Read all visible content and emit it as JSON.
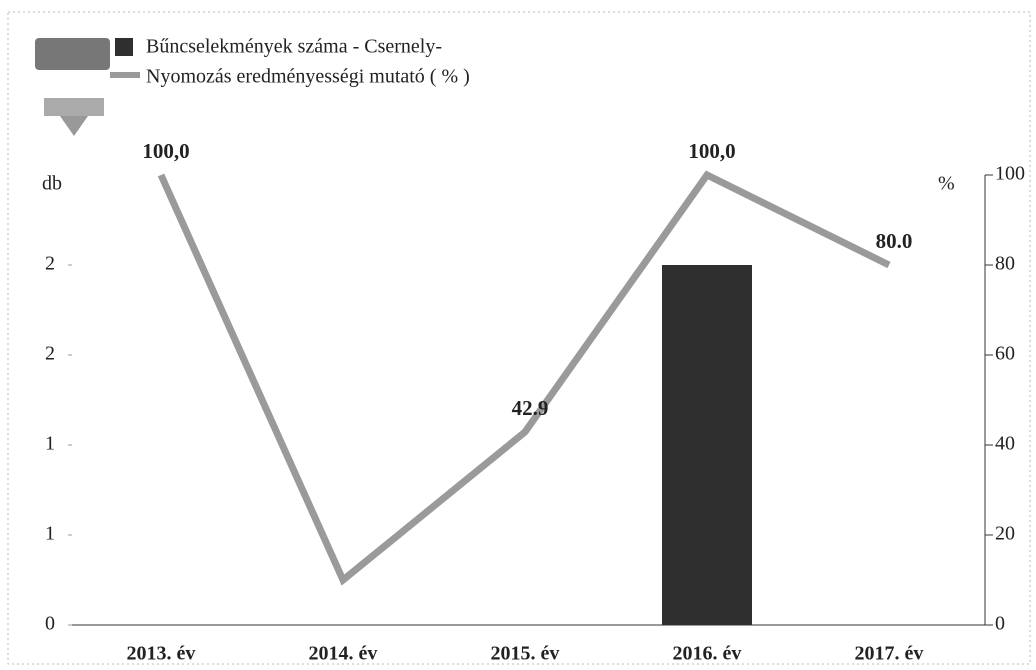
{
  "chart_data": {
    "type": "bar-line",
    "categories": [
      "2013. év",
      "2014. év",
      "2015. év",
      "2016. év",
      "2017. év"
    ],
    "series": [
      {
        "name": "Bűncselekmények száma - Csernely-",
        "type": "bar",
        "color": "#2f2f2f",
        "values": [
          0,
          0,
          0,
          2,
          0
        ]
      },
      {
        "name": "Nyomozás eredményességi mutató ( % )",
        "type": "line",
        "axis": "y2",
        "color": "#9a9a9a",
        "values": [
          100.0,
          10,
          42.9,
          100.0,
          80.0
        ],
        "value_labels": [
          "100,0",
          null,
          "42.9",
          "100,0",
          "80.0"
        ]
      }
    ],
    "ylabel": "db",
    "y2label": "%",
    "ylim": [
      0,
      2.5
    ],
    "yticks": [
      0,
      {
        "value": 0.5,
        "label": "1"
      },
      1,
      {
        "value": 1.5,
        "label": "2"
      },
      2
    ],
    "y2lim": [
      0,
      100
    ],
    "y2ticks": [
      0,
      20,
      40,
      60,
      80,
      100
    ]
  }
}
